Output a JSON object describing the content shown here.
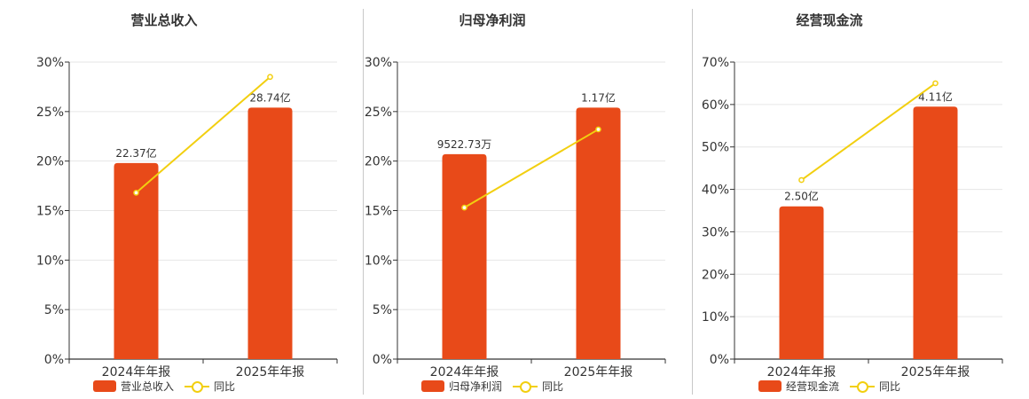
{
  "colors": {
    "bar": "#e84a19",
    "line": "#f2cf10",
    "axis": "#333333",
    "grid": "#e6e6e6",
    "text": "#333333"
  },
  "chart_data": [
    {
      "type": "bar",
      "title": "营业总收入",
      "categories": [
        "2024年年报",
        "2025年年报"
      ],
      "ylim": [
        0,
        30
      ],
      "yticks": [
        "0%",
        "5%",
        "10%",
        "15%",
        "20%",
        "25%",
        "30%"
      ],
      "series": [
        {
          "name": "营业总收入",
          "type": "bar",
          "values": [
            19.8,
            25.4
          ],
          "labels": [
            "22.37亿",
            "28.74亿"
          ]
        },
        {
          "name": "同比",
          "type": "line",
          "values": [
            16.8,
            28.5
          ]
        }
      ],
      "legend": "bottom",
      "grid": true
    },
    {
      "type": "bar",
      "title": "归母净利润",
      "categories": [
        "2024年年报",
        "2025年年报"
      ],
      "ylim": [
        0,
        30
      ],
      "yticks": [
        "0%",
        "5%",
        "10%",
        "15%",
        "20%",
        "25%",
        "30%"
      ],
      "series": [
        {
          "name": "归母净利润",
          "type": "bar",
          "values": [
            20.7,
            25.4
          ],
          "labels": [
            "9522.73万",
            "1.17亿"
          ]
        },
        {
          "name": "同比",
          "type": "line",
          "values": [
            15.3,
            23.2
          ]
        }
      ],
      "legend": "bottom",
      "grid": true
    },
    {
      "type": "bar",
      "title": "经营现金流",
      "categories": [
        "2024年年报",
        "2025年年报"
      ],
      "ylim": [
        0,
        70
      ],
      "yticks": [
        "0%",
        "10%",
        "20%",
        "30%",
        "40%",
        "50%",
        "60%",
        "70%"
      ],
      "series": [
        {
          "name": "经营现金流",
          "type": "bar",
          "values": [
            36.0,
            59.5
          ],
          "labels": [
            "2.50亿",
            "4.11亿"
          ]
        },
        {
          "name": "同比",
          "type": "line",
          "values": [
            42.2,
            65.0
          ]
        }
      ],
      "legend": "bottom",
      "grid": true
    }
  ]
}
